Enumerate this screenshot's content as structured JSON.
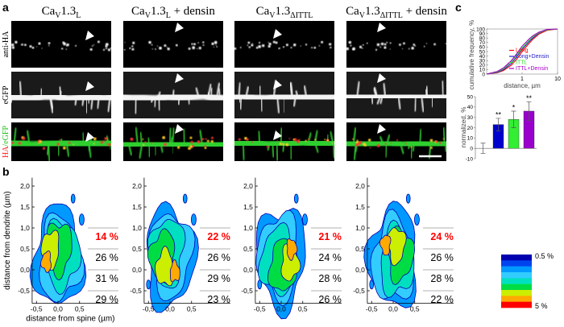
{
  "panel_labels": [
    "a",
    "b",
    "c"
  ],
  "panel_a": {
    "columns": [
      [
        {
          "text": "Ca"
        },
        {
          "text": "V",
          "sub": true
        },
        {
          "text": "1.3"
        },
        {
          "text": "L",
          "sub": true
        }
      ],
      [
        {
          "text": "Ca"
        },
        {
          "text": "V",
          "sub": true
        },
        {
          "text": "1.3"
        },
        {
          "text": "L",
          "sub": true
        },
        {
          "text": " + densin"
        }
      ],
      [
        {
          "text": "Ca"
        },
        {
          "text": "V",
          "sub": true
        },
        {
          "text": "1.3"
        },
        {
          "text": "ΔITTL",
          "sub": true
        }
      ],
      [
        {
          "text": "Ca"
        },
        {
          "text": "V",
          "sub": true
        },
        {
          "text": "1.3"
        },
        {
          "text": "ΔITTL",
          "sub": true
        },
        {
          "text": " + densin"
        }
      ]
    ],
    "rows": [
      [
        {
          "text": "anti-HA",
          "color": "#000000"
        }
      ],
      [
        {
          "text": "eGFP",
          "color": "#000000"
        }
      ],
      [
        {
          "text": "HA",
          "color": "#ff2020"
        },
        {
          "text": "/eGFP",
          "color": "#20c020"
        }
      ]
    ]
  },
  "chart_data": [
    {
      "type": "contour",
      "ylabel": "distance from dendrite (µm)",
      "xlabel": "distance from spine (µm)",
      "ylim": [
        -0.8,
        2.2
      ],
      "yticks": [
        {
          "value": 2,
          "label": "2,0"
        },
        {
          "value": 1.5,
          "label": "1,5"
        },
        {
          "value": 1,
          "label": "1,0"
        },
        {
          "value": 0.5,
          "label": "0,5"
        },
        {
          "value": 0,
          "label": "0,0"
        },
        {
          "value": -0.5,
          "label": "-0,5"
        }
      ],
      "xlim": [
        -0.6,
        1.4
      ],
      "xticks": [
        {
          "value": -0.5,
          "label": "-0,5"
        },
        {
          "value": 0,
          "label": "0,0"
        },
        {
          "value": 0.5,
          "label": "0,5"
        }
      ],
      "region_labels": [
        "14 %",
        "26 %",
        "31 %",
        "29 %"
      ],
      "highlight_color": "#ff0000"
    },
    {
      "type": "contour",
      "ylim": [
        -0.8,
        2.2
      ],
      "yticks": [
        {
          "value": 2,
          "label": "2,0"
        },
        {
          "value": 1.5,
          "label": "1,5"
        },
        {
          "value": 1,
          "label": "1,0"
        },
        {
          "value": 0.5,
          "label": "0,5"
        },
        {
          "value": 0,
          "label": "0,0"
        },
        {
          "value": -0.5,
          "label": "-0,5"
        }
      ],
      "xlim": [
        -0.6,
        1.4
      ],
      "xticks": [
        {
          "value": -0.5,
          "label": "-0,5"
        },
        {
          "value": 0,
          "label": "0,0"
        },
        {
          "value": 0.5,
          "label": "0,5"
        }
      ],
      "region_labels": [
        "22 %",
        "26 %",
        "29 %",
        "23 %"
      ],
      "highlight_color": "#ff0000"
    },
    {
      "type": "contour",
      "ylim": [
        -0.8,
        2.2
      ],
      "yticks": [
        {
          "value": 2,
          "label": "2,0"
        },
        {
          "value": 1.5,
          "label": "1,5"
        },
        {
          "value": 1,
          "label": "1,0"
        },
        {
          "value": 0.5,
          "label": "0,5"
        },
        {
          "value": 0,
          "label": "0,0"
        },
        {
          "value": -0.5,
          "label": "-0,5"
        }
      ],
      "xlim": [
        -0.6,
        1.4
      ],
      "xticks": [
        {
          "value": -0.5,
          "label": "-0,5"
        },
        {
          "value": 0,
          "label": "0,0"
        },
        {
          "value": 0.5,
          "label": "0,5"
        }
      ],
      "region_labels": [
        "21 %",
        "24 %",
        "28 %",
        "26 %"
      ],
      "highlight_color": "#ff0000"
    },
    {
      "type": "contour",
      "ylim": [
        -0.8,
        2.2
      ],
      "yticks": [
        {
          "value": 2,
          "label": "2,0"
        },
        {
          "value": 1.5,
          "label": "1,5"
        },
        {
          "value": 1,
          "label": "1,0"
        },
        {
          "value": 0.5,
          "label": "0,5"
        },
        {
          "value": 0,
          "label": "0,0"
        },
        {
          "value": -0.5,
          "label": "-0,5"
        }
      ],
      "xlim": [
        -0.6,
        1.4
      ],
      "xticks": [
        {
          "value": -0.5,
          "label": "-0,5"
        },
        {
          "value": 0,
          "label": "0,0"
        },
        {
          "value": 0.5,
          "label": "0,5"
        }
      ],
      "region_labels": [
        "24 %",
        "26 %",
        "28 %",
        "22 %"
      ],
      "highlight_color": "#ff0000"
    },
    {
      "type": "line",
      "ylabel": "cumulative frequency, %",
      "xlabel": "distance, µm",
      "xscale": "log",
      "x": [
        0.1,
        0.2,
        0.3,
        0.5,
        0.7,
        1,
        1.5,
        2,
        3,
        5,
        10
      ],
      "series": [
        {
          "name": "Long",
          "color": "#ff0000",
          "values": [
            0,
            3,
            8,
            20,
            33,
            50,
            66,
            77,
            89,
            97,
            100
          ]
        },
        {
          "name": "Long+Densin",
          "color": "#2222cc",
          "values": [
            0,
            4,
            10,
            24,
            38,
            55,
            70,
            80,
            91,
            98,
            100
          ]
        },
        {
          "name": "ITTL",
          "color": "#33dd33",
          "values": [
            0,
            5,
            12,
            28,
            42,
            58,
            73,
            83,
            92,
            98,
            100
          ]
        },
        {
          "name": "ITTL+Densin",
          "color": "#aa00cc",
          "values": [
            0,
            6,
            14,
            30,
            45,
            62,
            76,
            85,
            93,
            99,
            100
          ]
        }
      ],
      "xlim": [
        0.1,
        10
      ],
      "xticks": [
        1,
        10
      ],
      "ylim": [
        0,
        100
      ],
      "yticks": [
        0,
        10,
        20,
        30,
        40,
        50,
        60,
        70,
        80,
        90,
        100
      ],
      "legend": "lower right"
    },
    {
      "type": "bar",
      "ylabel": "normalized, %",
      "categories": [
        null,
        null,
        null,
        null
      ],
      "values": [
        0,
        23,
        28,
        36
      ],
      "errors": [
        5,
        6,
        8,
        9
      ],
      "annotations": [
        null,
        "**",
        "*",
        "**"
      ],
      "colors": [
        "#ff0000",
        "#0000cc",
        "#33ee33",
        "#9900cc"
      ],
      "ylim": [
        -10,
        50
      ],
      "yticks": [
        -10,
        0,
        10,
        20,
        30,
        40,
        50
      ]
    }
  ],
  "colorbar": {
    "colors": [
      "#0000b0",
      "#0044ee",
      "#0099ff",
      "#33ccff",
      "#00e0c0",
      "#00dd44",
      "#ccee00",
      "#ffaa00",
      "#ff0000"
    ],
    "labels": [
      "0.5 %",
      "5 %"
    ]
  }
}
